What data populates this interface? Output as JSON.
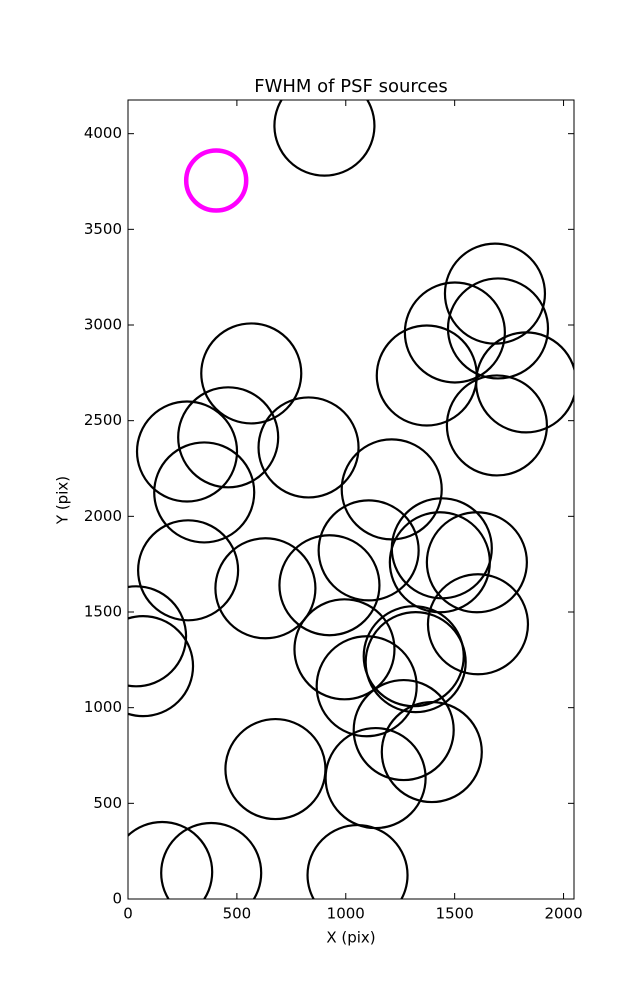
{
  "chart_data": {
    "type": "scatter",
    "title": "FWHM of PSF sources",
    "x_label": "X (pix)",
    "y_label": "Y (pix)",
    "xlim": [
      0,
      2048
    ],
    "ylim": [
      0,
      4176
    ],
    "xticks": [
      0,
      500,
      1000,
      1500,
      2000
    ],
    "yticks": [
      0,
      500,
      1000,
      1500,
      2000,
      2500,
      3000,
      3500,
      4000
    ],
    "series": [
      {
        "color": "#000000",
        "x": [
          902,
          1685,
          1501,
          1699,
          1828,
          1372,
          1694,
          566,
          460,
          271,
          829,
          350,
          1211,
          1441,
          1105,
          1432,
          1602,
          276,
          631,
          925,
          37,
          69,
          994,
          1607,
          1312,
          1321,
          1096,
          1266,
          1395,
          677,
          1137,
          157,
          382,
          1054
        ],
        "values": [
          4042,
          3164,
          2961,
          2982,
          2700,
          2736,
          2475,
          2747,
          2413,
          2339,
          2360,
          2125,
          2141,
          1833,
          1822,
          1760,
          1760,
          1718,
          1624,
          1640,
          1373,
          1217,
          1305,
          1436,
          1269,
          1238,
          1112,
          883,
          768,
          679,
          632,
          141,
          136,
          125
        ]
      },
      {
        "color": "#ff00ff",
        "x": [
          405
        ],
        "values": [
          3755
        ]
      }
    ]
  }
}
